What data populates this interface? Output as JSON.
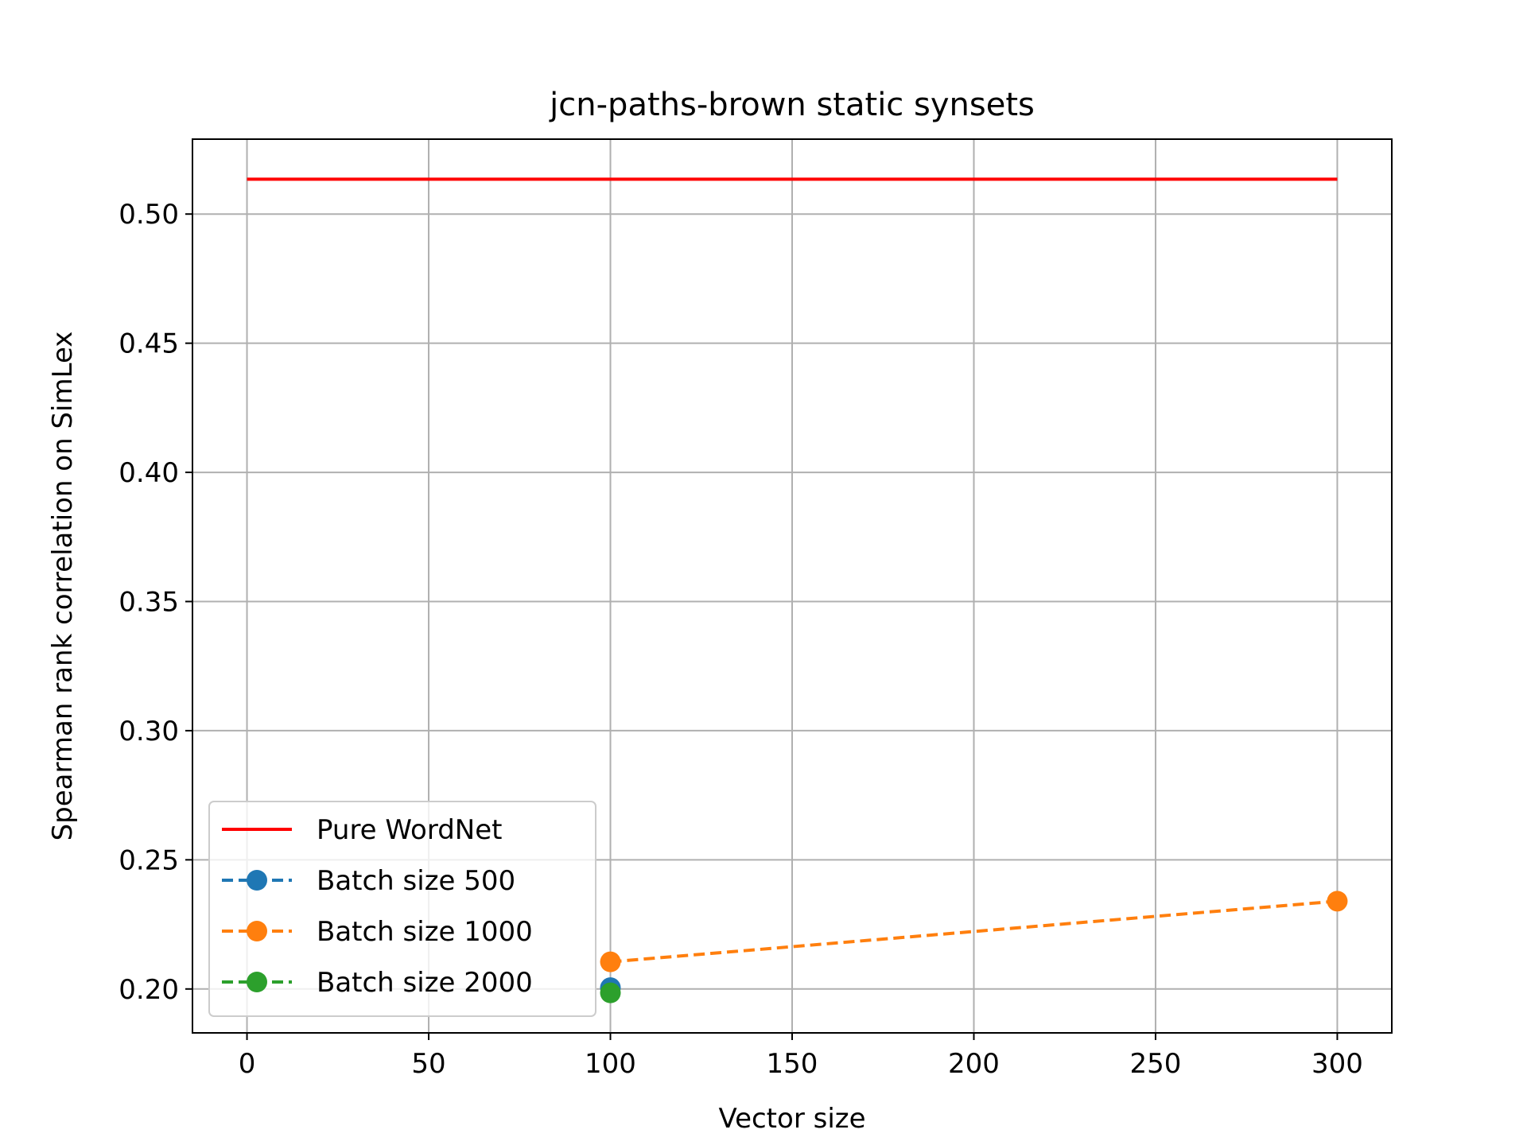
{
  "chart_data": {
    "type": "line",
    "title": "jcn-paths-brown static synsets",
    "xlabel": "Vector size",
    "ylabel": "Spearman rank correlation on SimLex",
    "xlim": [
      -15,
      315
    ],
    "ylim": [
      0.183,
      0.529
    ],
    "xticks": [
      0,
      50,
      100,
      150,
      200,
      250,
      300
    ],
    "yticks": [
      0.2,
      0.25,
      0.3,
      0.35,
      0.4,
      0.45,
      0.5
    ],
    "xtick_labels": [
      "0",
      "50",
      "100",
      "150",
      "200",
      "250",
      "300"
    ],
    "ytick_labels": [
      "0.20",
      "0.25",
      "0.30",
      "0.35",
      "0.40",
      "0.45",
      "0.50"
    ],
    "grid": true,
    "legend_position": "lower-left",
    "series": [
      {
        "name": "Pure WordNet",
        "color": "#ff0000",
        "style": "solid",
        "marker": "none",
        "x": [
          0,
          300
        ],
        "y": [
          0.5135,
          0.5135
        ]
      },
      {
        "name": "Batch size 500",
        "color": "#1f77b4",
        "style": "dashed",
        "marker": "circle",
        "x": [
          100
        ],
        "y": [
          0.2005
        ]
      },
      {
        "name": "Batch size 1000",
        "color": "#ff7f0e",
        "style": "dashed",
        "marker": "circle",
        "x": [
          100,
          300
        ],
        "y": [
          0.2105,
          0.234
        ]
      },
      {
        "name": "Batch size 2000",
        "color": "#2ca02c",
        "style": "dashed",
        "marker": "circle",
        "x": [
          100
        ],
        "y": [
          0.1985
        ]
      }
    ]
  }
}
